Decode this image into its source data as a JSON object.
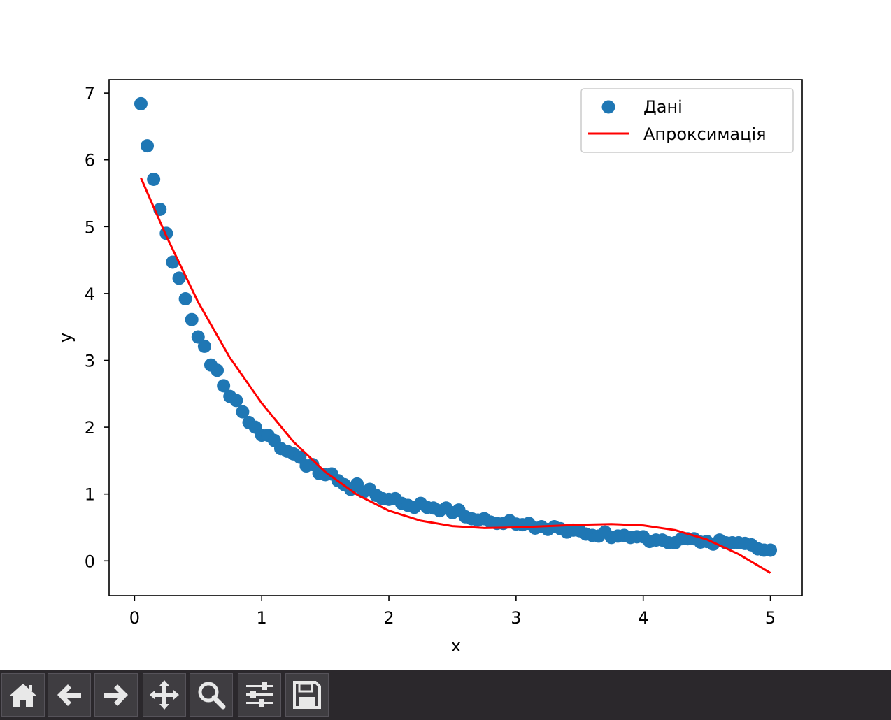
{
  "chart_data": {
    "type": "scatter",
    "title": "",
    "xlabel": "x",
    "ylabel": "y",
    "xlim": [
      -0.2,
      5.25
    ],
    "ylim": [
      -0.52,
      7.2
    ],
    "xticks": [
      0,
      1,
      2,
      3,
      4,
      5
    ],
    "yticks": [
      0,
      1,
      2,
      3,
      4,
      5,
      6,
      7
    ],
    "grid": false,
    "legend_position": "top-right",
    "series": [
      {
        "name": "Дані",
        "kind": "scatter",
        "color": "#1f77b4",
        "x": [
          0.05,
          0.1,
          0.15,
          0.2,
          0.25,
          0.3,
          0.35,
          0.4,
          0.45,
          0.5,
          0.55,
          0.6,
          0.65,
          0.7,
          0.75,
          0.8,
          0.85,
          0.9,
          0.95,
          1.0,
          1.05,
          1.1,
          1.15,
          1.2,
          1.25,
          1.3,
          1.35,
          1.4,
          1.45,
          1.5,
          1.55,
          1.6,
          1.65,
          1.7,
          1.75,
          1.8,
          1.85,
          1.9,
          1.95,
          2.0,
          2.05,
          2.1,
          2.15,
          2.2,
          2.25,
          2.3,
          2.35,
          2.4,
          2.45,
          2.5,
          2.55,
          2.6,
          2.65,
          2.7,
          2.75,
          2.8,
          2.85,
          2.9,
          2.95,
          3.0,
          3.05,
          3.1,
          3.15,
          3.2,
          3.25,
          3.3,
          3.35,
          3.4,
          3.45,
          3.5,
          3.55,
          3.6,
          3.65,
          3.7,
          3.75,
          3.8,
          3.85,
          3.9,
          3.95,
          4.0,
          4.05,
          4.1,
          4.15,
          4.2,
          4.25,
          4.3,
          4.35,
          4.4,
          4.45,
          4.5,
          4.55,
          4.6,
          4.65,
          4.7,
          4.75,
          4.8,
          4.85,
          4.9,
          4.95,
          5.0
        ],
        "y": [
          6.84,
          6.21,
          5.71,
          5.26,
          4.9,
          4.47,
          4.23,
          3.92,
          3.61,
          3.35,
          3.21,
          2.93,
          2.85,
          2.62,
          2.46,
          2.4,
          2.23,
          2.07,
          2.0,
          1.88,
          1.88,
          1.8,
          1.68,
          1.64,
          1.6,
          1.55,
          1.42,
          1.44,
          1.31,
          1.29,
          1.3,
          1.2,
          1.14,
          1.07,
          1.15,
          1.03,
          1.07,
          0.98,
          0.93,
          0.92,
          0.93,
          0.86,
          0.83,
          0.8,
          0.86,
          0.8,
          0.79,
          0.75,
          0.79,
          0.72,
          0.76,
          0.66,
          0.63,
          0.61,
          0.63,
          0.58,
          0.56,
          0.56,
          0.6,
          0.55,
          0.54,
          0.56,
          0.49,
          0.51,
          0.47,
          0.51,
          0.48,
          0.43,
          0.46,
          0.45,
          0.4,
          0.38,
          0.37,
          0.43,
          0.35,
          0.37,
          0.38,
          0.35,
          0.36,
          0.36,
          0.29,
          0.31,
          0.31,
          0.27,
          0.27,
          0.33,
          0.33,
          0.33,
          0.28,
          0.29,
          0.25,
          0.31,
          0.27,
          0.27,
          0.27,
          0.26,
          0.24,
          0.18,
          0.16,
          0.16
        ]
      },
      {
        "name": "Апроксимація",
        "kind": "line",
        "color": "#ff0000",
        "x": [
          0.05,
          0.25,
          0.5,
          0.75,
          1.0,
          1.25,
          1.5,
          1.75,
          2.0,
          2.25,
          2.5,
          2.75,
          3.0,
          3.25,
          3.5,
          3.75,
          4.0,
          4.25,
          4.5,
          4.75,
          5.0
        ],
        "y": [
          5.73,
          4.86,
          3.87,
          3.04,
          2.36,
          1.78,
          1.33,
          0.99,
          0.75,
          0.6,
          0.52,
          0.49,
          0.5,
          0.52,
          0.54,
          0.55,
          0.53,
          0.46,
          0.32,
          0.1,
          -0.18
        ]
      }
    ]
  },
  "toolbar": {
    "buttons": [
      {
        "name": "home-icon",
        "label": "Home"
      },
      {
        "name": "back-arrow-icon",
        "label": "Back"
      },
      {
        "name": "forward-arrow-icon",
        "label": "Forward"
      },
      {
        "name": "pan-icon",
        "label": "Pan"
      },
      {
        "name": "zoom-icon",
        "label": "Zoom"
      },
      {
        "name": "subplots-icon",
        "label": "Configure subplots"
      },
      {
        "name": "save-icon",
        "label": "Save"
      }
    ]
  }
}
